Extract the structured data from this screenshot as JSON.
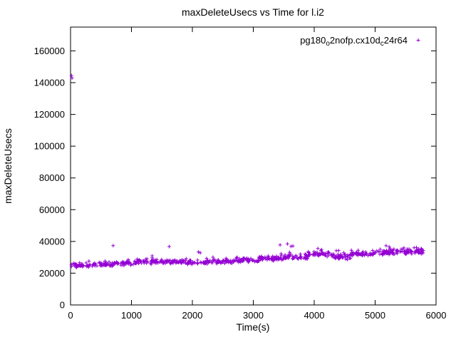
{
  "chart_data": {
    "type": "scatter",
    "title": "maxDeleteUsecs vs Time for l.i2",
    "xlabel": "Time(s)",
    "ylabel": "maxDeleteUsecs",
    "xlim": [
      0,
      6000
    ],
    "ylim": [
      0,
      175000
    ],
    "xticks": [
      0,
      1000,
      2000,
      3000,
      4000,
      5000,
      6000
    ],
    "yticks": [
      0,
      20000,
      40000,
      60000,
      80000,
      100000,
      120000,
      140000,
      160000
    ],
    "grid": false,
    "legend_position": "top-right-inside",
    "series": [
      {
        "name": "pg180_o2nofp.cx10d_c24r64",
        "name_parts": [
          {
            "text": "pg180",
            "sub": false
          },
          {
            "text": "o",
            "sub": true
          },
          {
            "text": "2nofp.cx10d",
            "sub": false
          },
          {
            "text": "c",
            "sub": true
          },
          {
            "text": "24r64",
            "sub": false
          }
        ],
        "marker": "plus",
        "color": "#9400d3",
        "band_segments": [
          [
            0,
            300,
            40,
            24800,
            1500
          ],
          [
            300,
            700,
            50,
            25400,
            1600
          ],
          [
            700,
            1100,
            50,
            26300,
            1600
          ],
          [
            1100,
            1500,
            52,
            27400,
            1500
          ],
          [
            1500,
            1900,
            50,
            26900,
            1400
          ],
          [
            1900,
            2300,
            50,
            26800,
            1400
          ],
          [
            2300,
            2700,
            50,
            27300,
            1400
          ],
          [
            2700,
            3100,
            52,
            28100,
            1500
          ],
          [
            3100,
            3500,
            52,
            29200,
            1800
          ],
          [
            3500,
            3900,
            52,
            30300,
            2000
          ],
          [
            3900,
            4300,
            52,
            31800,
            1800
          ],
          [
            4300,
            4600,
            42,
            30300,
            2200
          ],
          [
            4600,
            5000,
            52,
            32100,
            1700
          ],
          [
            5000,
            5400,
            52,
            33000,
            1700
          ],
          [
            5400,
            5800,
            56,
            33600,
            1800
          ]
        ],
        "outliers": [
          [
            15,
            144500
          ],
          [
            25,
            142900
          ],
          [
            700,
            37400
          ],
          [
            1340,
            30900
          ],
          [
            1620,
            36800
          ],
          [
            2100,
            33400
          ],
          [
            2130,
            32800
          ],
          [
            3440,
            37800
          ],
          [
            3560,
            38500
          ],
          [
            3620,
            36900
          ],
          [
            3650,
            37100
          ],
          [
            4060,
            35600
          ],
          [
            4120,
            34900
          ],
          [
            4400,
            34300
          ],
          [
            5180,
            37300
          ],
          [
            5230,
            36600
          ],
          [
            5640,
            36000
          ],
          [
            5760,
            35400
          ],
          [
            5770,
            34800
          ]
        ]
      }
    ]
  }
}
